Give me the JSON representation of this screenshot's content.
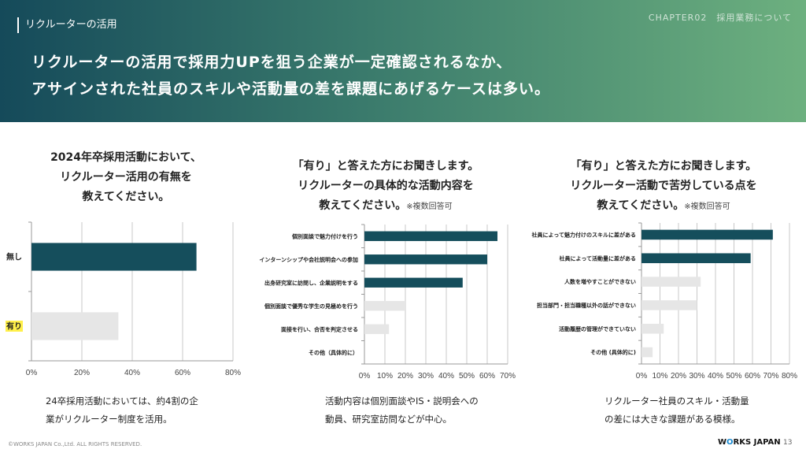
{
  "header": {
    "section_label": "リクルーターの活用",
    "chapter": "CHAPTER02　採用業務について",
    "headline_line1": "リクルーターの活用で採用力UPを狙う企業が一定確認されるなか、",
    "headline_line2": "アサインされた社員のスキルや活動量の差を課題にあげるケースは多い。"
  },
  "panels": [
    {
      "title_lines": [
        "2024年卒採用活動において、",
        "リクルーター活用の有無を",
        "教えてください。"
      ],
      "note": "",
      "caption_lines": [
        "24卒採用活動においては、約4割の企",
        "業がリクルーター制度を活用。"
      ]
    },
    {
      "title_lines": [
        "「有り」と答えた方にお聞きします。",
        "リクルーターの具体的な活動内容を",
        "教えてください。"
      ],
      "note": "※複数回答可",
      "caption_lines": [
        "活動内容は個別面談やIS・説明会への",
        "動員、研究室訪問などが中心。"
      ]
    },
    {
      "title_lines": [
        "「有り」と答えた方にお聞きします。",
        "リクルーター活動で苦労している点を",
        "教えてください。"
      ],
      "note": "※複数回答可",
      "caption_lines": [
        "リクルーター社員のスキル・活動量",
        "の差には大きな課題がある模様。"
      ]
    }
  ],
  "chart_data": [
    {
      "type": "bar",
      "orientation": "horizontal",
      "categories": [
        "無し",
        "有り"
      ],
      "values": [
        65.5,
        34.5
      ],
      "highlight_category": "有り",
      "colors": [
        "#154e5c",
        "#e6e6e6"
      ],
      "highlight_color": "#fff04a",
      "xlim": [
        0,
        80
      ],
      "xticks": [
        "0%",
        "20%",
        "40%",
        "60%",
        "80%"
      ],
      "grid": true
    },
    {
      "type": "bar",
      "orientation": "horizontal",
      "categories": [
        "個別面談で魅力付けを行う",
        "インターンシップや会社説明会への参加",
        "出身研究室に訪問し、企業説明をする",
        "個別面談で優秀な学生の見極めを行う",
        "面接を行い、合否を判定させる",
        "その他（具体的に）"
      ],
      "values": [
        65,
        60,
        48,
        20,
        12,
        0
      ],
      "colors": [
        "#154e5c",
        "#154e5c",
        "#154e5c",
        "#e6e6e6",
        "#e6e6e6",
        "#e6e6e6"
      ],
      "xlim": [
        0,
        70
      ],
      "xticks": [
        "0%",
        "10%",
        "20%",
        "30%",
        "40%",
        "50%",
        "60%",
        "70%"
      ],
      "grid": true
    },
    {
      "type": "bar",
      "orientation": "horizontal",
      "categories": [
        "社員によって魅力付けのスキルに差がある",
        "社員によって活動量に差がある",
        "人数を増やすことができない",
        "担当部門・担当職種以外の話ができない",
        "活動履歴の管理ができていない",
        "その他 (具体的に)"
      ],
      "values": [
        71,
        59,
        32,
        30,
        12,
        6
      ],
      "colors": [
        "#154e5c",
        "#154e5c",
        "#e6e6e6",
        "#e6e6e6",
        "#e6e6e6",
        "#e6e6e6"
      ],
      "xlim": [
        0,
        80
      ],
      "xticks": [
        "0%",
        "10%",
        "20%",
        "30%",
        "40%",
        "50%",
        "60%",
        "70%",
        "80%"
      ],
      "grid": true
    }
  ],
  "footer": {
    "copyright": "©WORKS JAPAN Co.,Ltd. ALL RIGHTS RESERVED.",
    "logo_pre": "W",
    "logo_o": "O",
    "logo_post": "RKS JAPAN",
    "page": "13"
  }
}
